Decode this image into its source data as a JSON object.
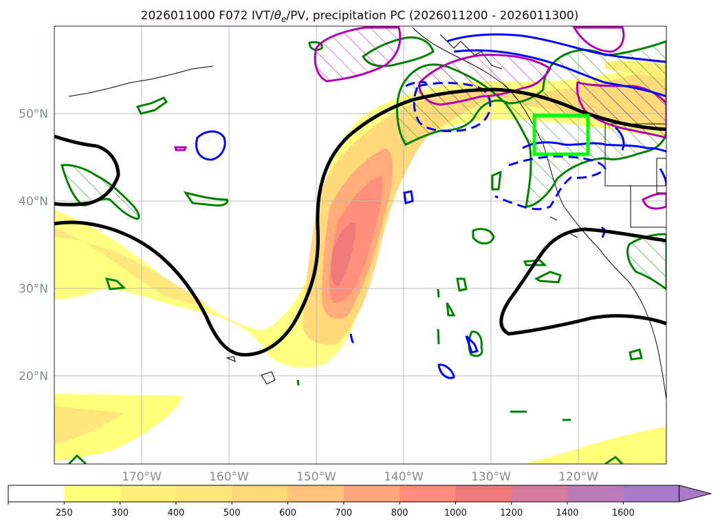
{
  "title": {
    "prefix": "2026011000 F072 IVT/",
    "theta": "θ",
    "theta_sub": "e",
    "suffix": "/PV, precipitation PC (2026011200 - 2026011300)"
  },
  "map": {
    "lon_ticks": [
      "170°W",
      "160°W",
      "150°W",
      "140°W",
      "130°W",
      "120°W"
    ],
    "lat_ticks": [
      "50°N",
      "40°N",
      "30°N",
      "20°N"
    ],
    "highlight_box_color": "#00ff00"
  },
  "colorbar": {
    "levels": [
      "250",
      "300",
      "400",
      "500",
      "600",
      "700",
      "800",
      "1000",
      "1200",
      "1400",
      "1600"
    ],
    "colors": [
      "#ffffff",
      "#ffff7a",
      "#fff07a",
      "#ffe57a",
      "#ffd87a",
      "#ffc27a",
      "#ffa67a",
      "#ff8c7a",
      "#f07a7a",
      "#d67a9e",
      "#bd7ab8",
      "#a87ac8",
      "#a87ac8"
    ]
  },
  "legend_colors": {
    "ivt_contours": "#000000",
    "theta_e_positive": "#0000ff",
    "theta_e_negative": "#0000ff",
    "precip_pc": "#008000",
    "pv": "#b000b0"
  }
}
